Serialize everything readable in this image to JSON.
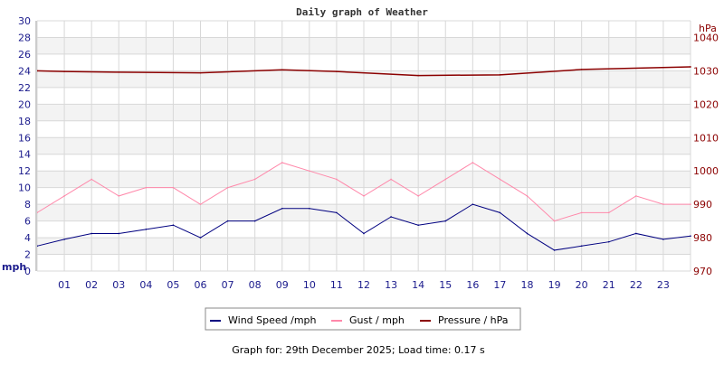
{
  "chart_data": {
    "type": "line",
    "title": "Daily graph of Weather",
    "left_axis": {
      "label": "mph",
      "range": [
        0,
        30
      ],
      "ticks": [
        0,
        2,
        4,
        6,
        8,
        10,
        12,
        14,
        16,
        18,
        20,
        22,
        24,
        26,
        28,
        30
      ]
    },
    "right_axis": {
      "label": "hPa",
      "range": [
        970,
        1045
      ],
      "ticks": [
        970,
        980,
        990,
        1000,
        1010,
        1020,
        1030,
        1040
      ]
    },
    "x_axis": {
      "range": [
        0,
        24
      ],
      "tick_labels": [
        "01",
        "02",
        "03",
        "04",
        "05",
        "06",
        "07",
        "08",
        "09",
        "10",
        "11",
        "12",
        "13",
        "14",
        "15",
        "16",
        "17",
        "18",
        "19",
        "20",
        "21",
        "22",
        "23"
      ]
    },
    "grid": true,
    "legend_placement": "bottom",
    "series": [
      {
        "name": "Wind Speed /mph",
        "axis": "left",
        "color": "#000080",
        "x": [
          0,
          1,
          2,
          3,
          4,
          5,
          6,
          7,
          8,
          9,
          10,
          11,
          12,
          13,
          14,
          15,
          16,
          17,
          18,
          19,
          20,
          21,
          22,
          23,
          24
        ],
        "values": [
          3,
          3.8,
          4.5,
          4.5,
          5,
          5.5,
          4,
          6,
          6,
          7.5,
          7.5,
          7,
          4.5,
          6.5,
          5.5,
          6,
          8,
          7,
          4.5,
          2.5,
          3,
          3.5,
          4.5,
          3.8,
          4.2
        ]
      },
      {
        "name": "Gust / mph",
        "axis": "left",
        "color": "#ff88aa",
        "x": [
          0,
          1,
          2,
          3,
          4,
          5,
          6,
          7,
          8,
          9,
          10,
          11,
          12,
          13,
          14,
          15,
          16,
          17,
          18,
          19,
          20,
          21,
          22,
          23,
          24
        ],
        "values": [
          7,
          9,
          11,
          9,
          10,
          10,
          8,
          10,
          11,
          13,
          12,
          11,
          9,
          11,
          9,
          11,
          13,
          11,
          9,
          6,
          7,
          7,
          9,
          8,
          8
        ]
      },
      {
        "name": "Pressure / hPa",
        "axis": "right",
        "color": "#8b0000",
        "x": [
          0,
          1,
          3,
          6,
          9,
          11,
          14,
          17,
          20,
          24
        ],
        "values": [
          1030,
          1029.8,
          1029.6,
          1029.4,
          1030.3,
          1029.8,
          1028.6,
          1028.8,
          1030.4,
          1031.2
        ]
      }
    ]
  },
  "footer": "Graph for: 29th December 2025; Load time: 0.17 s"
}
